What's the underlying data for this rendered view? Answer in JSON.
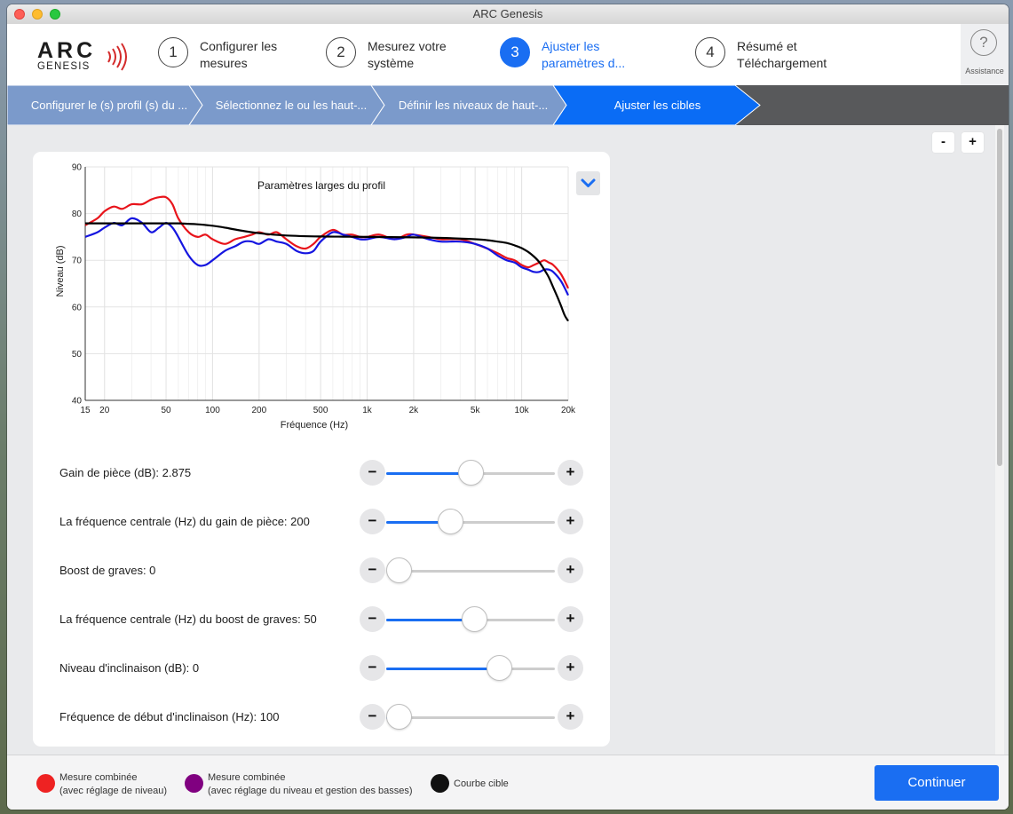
{
  "window": {
    "title": "ARC Genesis"
  },
  "logo": {
    "line1": "ARC",
    "line2": "GENESIS"
  },
  "steps": [
    {
      "num": "1",
      "label": "Configurer les mesures"
    },
    {
      "num": "2",
      "label": "Mesurez votre système"
    },
    {
      "num": "3",
      "label": "Ajuster les paramètres d..."
    },
    {
      "num": "4",
      "label": "Résumé et Téléchargement"
    }
  ],
  "assistance": {
    "icon": "?",
    "label": "Assistance"
  },
  "breadcrumb": [
    {
      "label": "Configurer le (s) profil (s) du ..."
    },
    {
      "label": "Sélectionnez le ou les haut-..."
    },
    {
      "label": "Définir les niveaux de haut-..."
    },
    {
      "label": "Ajuster les cibles"
    }
  ],
  "zoom": {
    "minus": "-",
    "plus": "+"
  },
  "chart_data": {
    "type": "line",
    "title": "Paramètres larges du profil",
    "xlabel": "Fréquence (Hz)",
    "ylabel": "Niveau (dB)",
    "xscale": "log",
    "xlim": [
      15,
      20000
    ],
    "ylim": [
      40,
      90
    ],
    "xticks": [
      15,
      20,
      50,
      100,
      200,
      500,
      1000,
      2000,
      5000,
      10000,
      20000
    ],
    "xtick_labels": [
      "15",
      "20",
      "50",
      "100",
      "200",
      "500",
      "1k",
      "2k",
      "5k",
      "10k",
      "20k"
    ],
    "yticks": [
      40,
      50,
      60,
      70,
      80,
      90
    ],
    "grid": true,
    "series": [
      {
        "name": "Mesure combinée (avec réglage de niveau)",
        "color": "#e8141b",
        "x": [
          15,
          18,
          20,
          23,
          26,
          30,
          35,
          40,
          45,
          50,
          55,
          60,
          70,
          80,
          90,
          100,
          120,
          140,
          160,
          180,
          200,
          230,
          260,
          300,
          350,
          400,
          450,
          500,
          600,
          700,
          800,
          900,
          1000,
          1200,
          1500,
          1800,
          2000,
          2500,
          3000,
          4000,
          5000,
          6000,
          7000,
          8000,
          9000,
          10000,
          11000,
          12000,
          13000,
          14000,
          15000,
          16000,
          18000,
          20000
        ],
        "y": [
          77.5,
          79,
          80.5,
          81.5,
          81,
          82,
          82,
          83,
          83.5,
          83.5,
          82,
          79,
          76,
          75,
          75.5,
          74.5,
          73.5,
          74.5,
          75,
          75.5,
          76,
          75.5,
          76,
          74.5,
          73,
          72.5,
          73.5,
          75,
          76.5,
          75.5,
          75.5,
          75,
          75,
          75.5,
          74.5,
          75.5,
          75.5,
          75,
          74.5,
          74.5,
          73.5,
          72.5,
          71.5,
          70.5,
          70,
          69,
          68.5,
          69,
          69.5,
          70,
          69.5,
          69,
          67,
          64
        ]
      },
      {
        "name": "Mesure combinée (avec réglage du niveau et gestion des basses)",
        "color": "#1515e0",
        "x": [
          15,
          18,
          20,
          23,
          26,
          30,
          35,
          40,
          45,
          50,
          55,
          60,
          70,
          80,
          90,
          100,
          120,
          140,
          160,
          180,
          200,
          230,
          260,
          300,
          350,
          400,
          450,
          500,
          600,
          700,
          800,
          900,
          1000,
          1200,
          1500,
          1800,
          2000,
          2500,
          3000,
          4000,
          5000,
          6000,
          7000,
          8000,
          9000,
          10000,
          11000,
          12000,
          13000,
          14000,
          15000,
          16000,
          18000,
          20000
        ],
        "y": [
          75,
          76,
          77,
          78,
          77.5,
          79,
          78,
          76,
          77,
          78,
          77,
          75,
          71,
          69,
          69,
          70,
          72,
          73,
          74,
          74,
          73.5,
          74.5,
          74,
          73.5,
          72,
          71.5,
          72,
          74,
          76,
          75.5,
          75,
          74.5,
          74.5,
          75,
          74.5,
          75,
          75.5,
          74.5,
          74,
          74,
          73.5,
          72.5,
          71,
          70,
          69.5,
          68.5,
          68,
          67.5,
          67.5,
          68,
          68,
          67.5,
          65.5,
          62.5
        ]
      },
      {
        "name": "Courbe cible",
        "color": "#000000",
        "x": [
          15,
          20,
          30,
          40,
          50,
          60,
          70,
          80,
          100,
          120,
          150,
          200,
          300,
          500,
          700,
          1000,
          2000,
          3000,
          5000,
          6000,
          7000,
          8000,
          9000,
          10000,
          11000,
          12000,
          13000,
          14000,
          15000,
          16000,
          17000,
          18000,
          19000,
          20000
        ],
        "y": [
          77.9,
          77.9,
          77.9,
          77.9,
          77.9,
          77.9,
          77.8,
          77.7,
          77.4,
          77,
          76.4,
          75.8,
          75.3,
          75.1,
          75.05,
          75,
          74.9,
          74.8,
          74.5,
          74.3,
          74,
          73.7,
          73.2,
          72.6,
          71.8,
          70.8,
          69.6,
          68,
          66.3,
          64.2,
          62.2,
          60.2,
          58.2,
          57
        ]
      }
    ]
  },
  "sliders": [
    {
      "label": "Gain de pièce (dB): 2.875",
      "value": 0.48,
      "minus": "−",
      "plus": "+"
    },
    {
      "label": "La fréquence centrale (Hz) du gain de pièce: 200",
      "value": 0.36,
      "minus": "−",
      "plus": "+"
    },
    {
      "label": "Boost de graves: 0",
      "value": 0.0,
      "minus": "−",
      "plus": "+"
    },
    {
      "label": "La fréquence centrale (Hz) du boost de graves: 50",
      "value": 0.5,
      "minus": "−",
      "plus": "+"
    },
    {
      "label": "Niveau d'inclinaison (dB): 0",
      "value": 0.65,
      "minus": "−",
      "plus": "+"
    },
    {
      "label": "Fréquence de début d'inclinaison (Hz): 100",
      "value": 0.01,
      "minus": "−",
      "plus": "+"
    }
  ],
  "legend": [
    {
      "line1": "Mesure combinée",
      "line2": "(avec réglage de niveau)",
      "color": "#ee2222"
    },
    {
      "line1": "Mesure combinée",
      "line2": "(avec réglage du niveau et gestion des basses)",
      "color": "#800080"
    },
    {
      "line1": "Courbe cible",
      "line2": "",
      "color": "#111111"
    }
  ],
  "continue_label": "Continuer"
}
